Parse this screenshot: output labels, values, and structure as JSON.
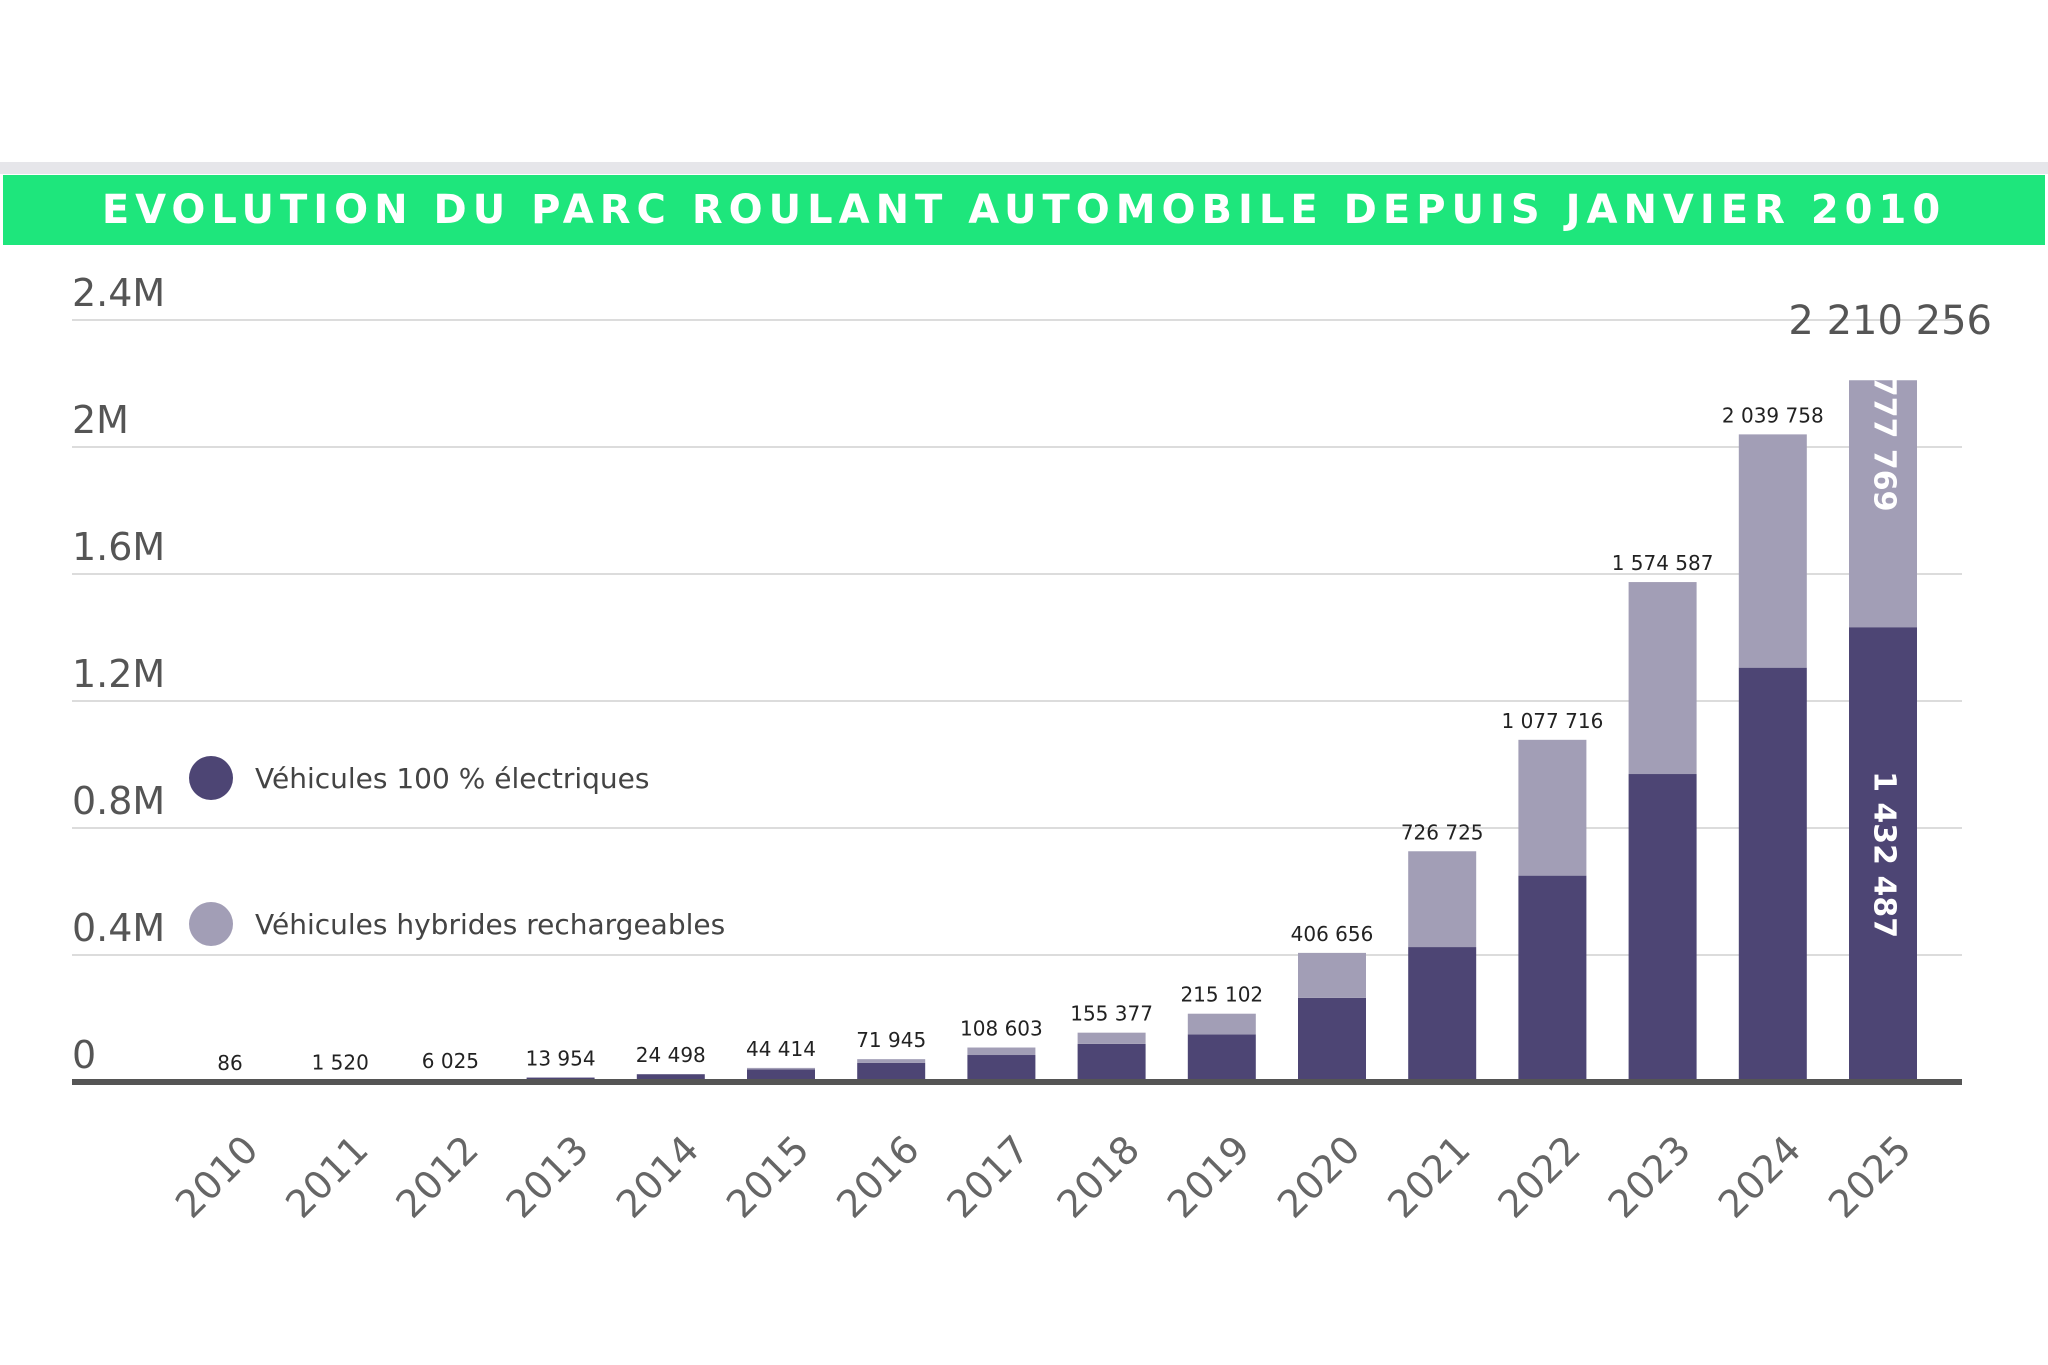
{
  "colors": {
    "title_bar": "#1ee67c",
    "electric": "#4d4574",
    "hybrid": "#a29eb6",
    "grid": "#dcdcdc",
    "axis": "#555555"
  },
  "chart_data": {
    "type": "bar",
    "stacked": true,
    "title": "EVOLUTION DU PARC ROULANT AUTOMOBILE DEPUIS JANVIER 2010",
    "categories": [
      "2010",
      "2011",
      "2012",
      "2013",
      "2014",
      "2015",
      "2016",
      "2017",
      "2018",
      "2019",
      "2020",
      "2021",
      "2022",
      "2023",
      "2024",
      "2025"
    ],
    "series": [
      {
        "name": "Véhicules 100 % électriques",
        "color": "#4d4574",
        "values": [
          86,
          1520,
          6025,
          13954,
          24498,
          40000,
          60000,
          85000,
          120000,
          150000,
          265000,
          425000,
          650000,
          970000,
          1305000,
          1432487
        ]
      },
      {
        "name": "Véhicules hybrides rechargeables",
        "color": "#a29eb6",
        "values": [
          0,
          0,
          0,
          0,
          0,
          4414,
          11945,
          23603,
          35377,
          65102,
          141656,
          301725,
          427716,
          604587,
          734758,
          777769
        ]
      }
    ],
    "totals": [
      86,
      1520,
      6025,
      13954,
      24498,
      44414,
      71945,
      108603,
      155377,
      215102,
      406656,
      726725,
      1077716,
      1574587,
      2039758,
      2210256
    ],
    "total_labels": [
      "86",
      "1 520",
      "6 025",
      "13 954",
      "24 498",
      "44 414",
      "71 945",
      "108 603",
      "155 377",
      "215 102",
      "406 656",
      "726 725",
      "1 077 716",
      "1 574 587",
      "2 039 758",
      "2 210 256"
    ],
    "inside_labels": {
      "electric_2025": "1 432 487",
      "hybrid_2025": "777 769"
    },
    "yticks": [
      0,
      400000,
      800000,
      1200000,
      1600000,
      2000000,
      2400000
    ],
    "ytick_labels": [
      "0",
      "0.4M",
      "0.8M",
      "1.2M",
      "1.6M",
      "2M",
      "2.4M"
    ],
    "ylim": [
      0,
      2400000
    ],
    "grid": true,
    "legend_position": "left"
  }
}
